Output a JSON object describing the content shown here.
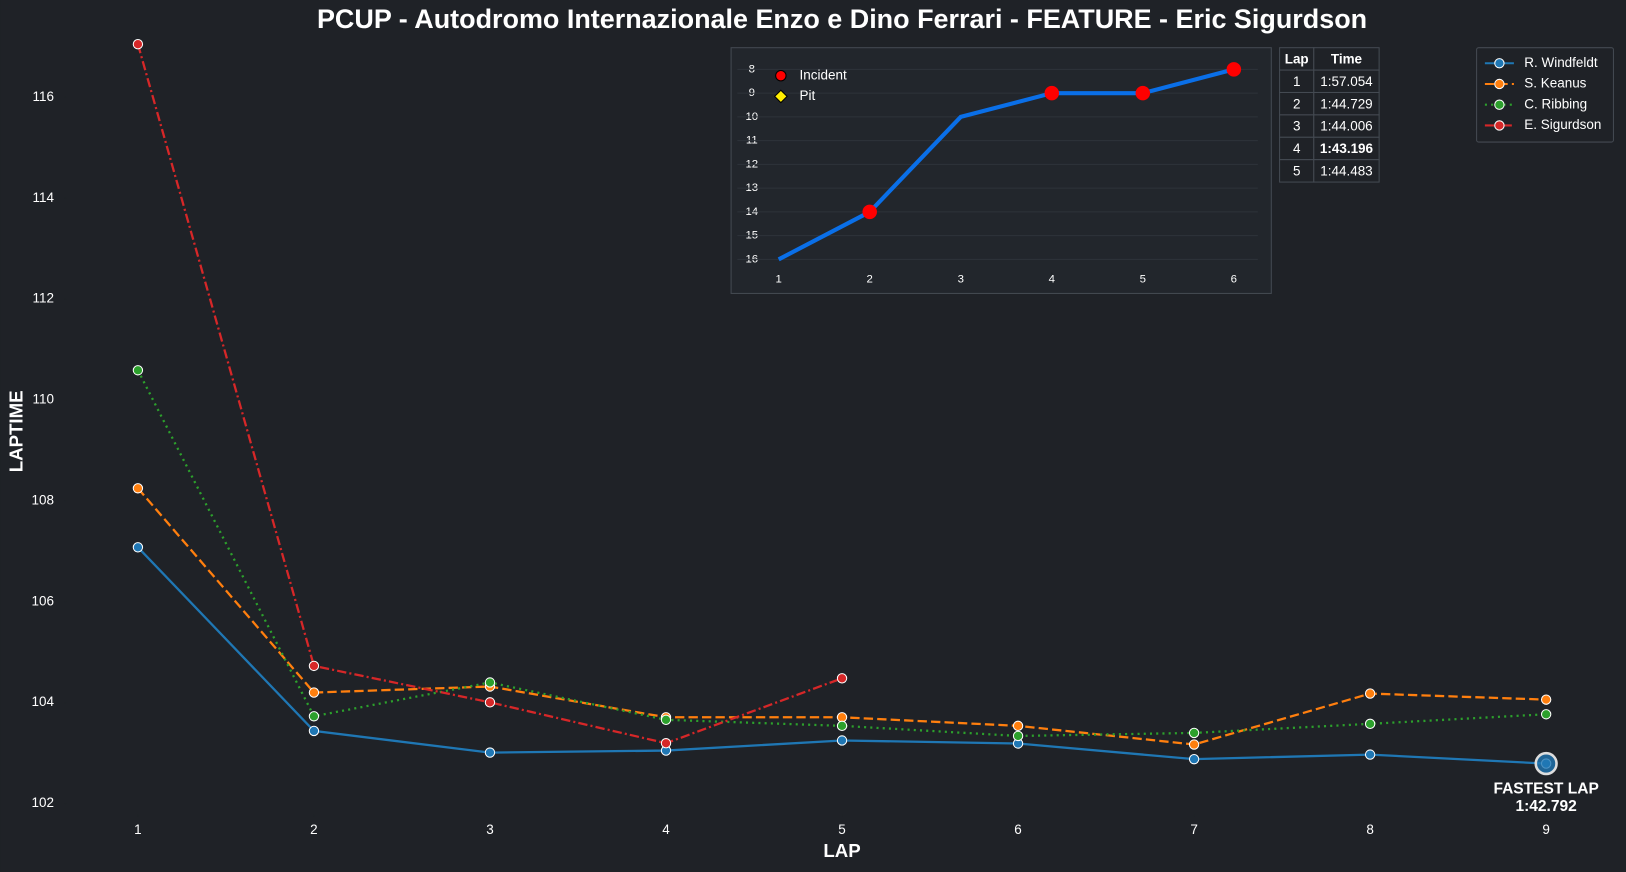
{
  "chart_data": [
    {
      "type": "line",
      "title": "PCUP - Autodromo Internazionale Enzo e Dino Ferrari - FEATURE - Eric Sigurdson",
      "xlabel": "LAP",
      "ylabel": "LAPTIME",
      "x": [
        1,
        2,
        3,
        4,
        5,
        6,
        7,
        8,
        9
      ],
      "xlim": [
        0.6,
        9.4
      ],
      "xticks": [
        1,
        2,
        3,
        4,
        5,
        6,
        7,
        8,
        9
      ],
      "ylim": [
        101.8,
        117.1
      ],
      "yticks": [
        102,
        104,
        106,
        108,
        110,
        112,
        114,
        116
      ],
      "legend": "upper right",
      "series": [
        {
          "name": "R. Windfeldt",
          "color": "#1f77b4",
          "linestyle": "solid",
          "values": [
            107.08,
            103.44,
            103.01,
            103.05,
            103.25,
            103.19,
            102.88,
            102.97,
            102.792
          ]
        },
        {
          "name": "S. Keanus",
          "color": "#ff7f0e",
          "linestyle": "dashed",
          "values": [
            108.25,
            104.2,
            104.32,
            103.71,
            103.71,
            103.54,
            103.17,
            104.18,
            104.06
          ]
        },
        {
          "name": "C. Ribbing",
          "color": "#2ca02c",
          "linestyle": "dotted",
          "values": [
            110.59,
            103.73,
            104.4,
            103.66,
            103.54,
            103.34,
            103.4,
            103.58,
            103.77
          ]
        },
        {
          "name": "E. Sigurdson",
          "color": "#d62728",
          "linestyle": "dashdot",
          "values": [
            117.054,
            104.729,
            104.006,
            103.196,
            104.483,
            null,
            null,
            null,
            null
          ]
        }
      ],
      "highlight": {
        "series": 0,
        "index": 8,
        "lines": [
          "FASTEST LAP",
          "1:42.792"
        ]
      }
    },
    {
      "type": "line",
      "x": [
        1,
        2,
        3,
        4,
        5,
        6
      ],
      "xlim": [
        0.5,
        6.4
      ],
      "xticks": [
        1,
        2,
        3,
        4,
        5,
        6
      ],
      "ylim": [
        16.5,
        7.5
      ],
      "yticks": [
        8,
        9,
        10,
        11,
        12,
        13,
        14,
        15,
        16
      ],
      "grid": true,
      "legend": "upper left",
      "series": [
        {
          "color": "#0a6fe8",
          "values": [
            16,
            14,
            10,
            9,
            9,
            8
          ]
        }
      ],
      "markers": [
        {
          "name": "Incident",
          "color": "#ff0000",
          "shape": "circle",
          "x": [
            2,
            4,
            5,
            6
          ],
          "values": [
            14,
            9,
            9,
            8
          ]
        },
        {
          "name": "Pit",
          "color": "#ffee00",
          "shape": "diamond",
          "x": [],
          "values": []
        }
      ]
    }
  ],
  "table": {
    "header": [
      "Lap",
      "Time"
    ],
    "rows": [
      [
        "1",
        "1:57.054"
      ],
      [
        "2",
        "1:44.729"
      ],
      [
        "3",
        "1:44.006"
      ],
      [
        "4",
        "1:43.196"
      ],
      [
        "5",
        "1:44.483"
      ]
    ],
    "highlight_row": 3,
    "highlight_color": "#ffee00"
  }
}
